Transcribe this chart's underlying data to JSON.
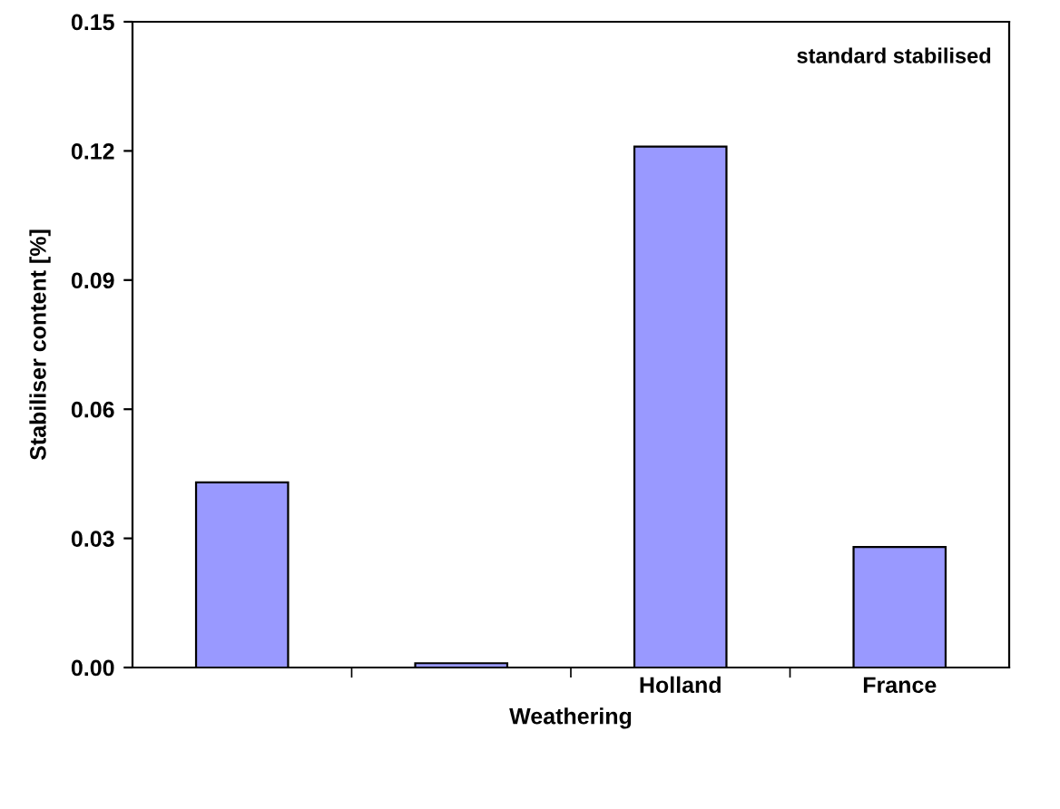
{
  "chart_data": {
    "type": "bar",
    "xlabel": "Weathering",
    "ylabel": "Stabiliser content [%]",
    "categories": [
      null,
      null,
      "Holland",
      "France"
    ],
    "values": [
      0.043,
      0.001,
      0.121,
      0.028
    ],
    "color": "#9999ff",
    "ylim": [
      0,
      0.15
    ],
    "yticks": [
      {
        "value": 0,
        "label": "0.00"
      },
      {
        "value": 0.03,
        "label": "0.03"
      },
      {
        "value": 0.06,
        "label": "0.06"
      },
      {
        "value": 0.09,
        "label": "0.09"
      },
      {
        "value": 0.12,
        "label": "0.12"
      },
      {
        "value": 0.15,
        "label": "0.15"
      }
    ],
    "grid": false,
    "annotations": [
      "standard stabilised"
    ]
  }
}
